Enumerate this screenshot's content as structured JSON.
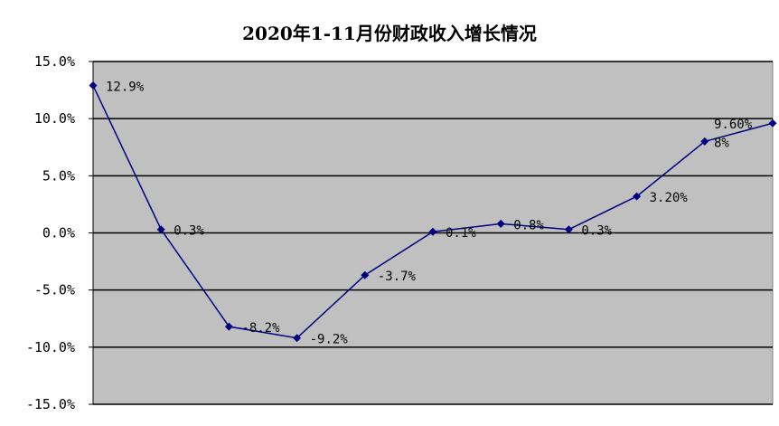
{
  "chart_data": {
    "type": "line",
    "title": "2020年1-11月份财政收入增长情况",
    "xlabel": "",
    "ylabel": "",
    "ylim": [
      -15,
      15
    ],
    "y_ticks": [
      "15.0%",
      "10.0%",
      "5.0%",
      "0.0%",
      "-5.0%",
      "-10.0%",
      "-15.0%"
    ],
    "grid": true,
    "legend": "none",
    "series": [
      {
        "values": [
          12.9,
          0.3,
          -8.2,
          -9.2,
          -3.7,
          0.1,
          0.8,
          0.3,
          3.2,
          8,
          9.6
        ],
        "labels": [
          "12.9%",
          "0.3%",
          "-8.2%",
          "-9.2%",
          "-3.7%",
          "0.1%",
          "0.8%",
          "0.3%",
          "3.20%",
          "8%",
          "9.60%"
        ]
      }
    ],
    "colors": {
      "plot_background": "#c0c0c0",
      "line": "#000080",
      "gridline": "#000000"
    }
  }
}
